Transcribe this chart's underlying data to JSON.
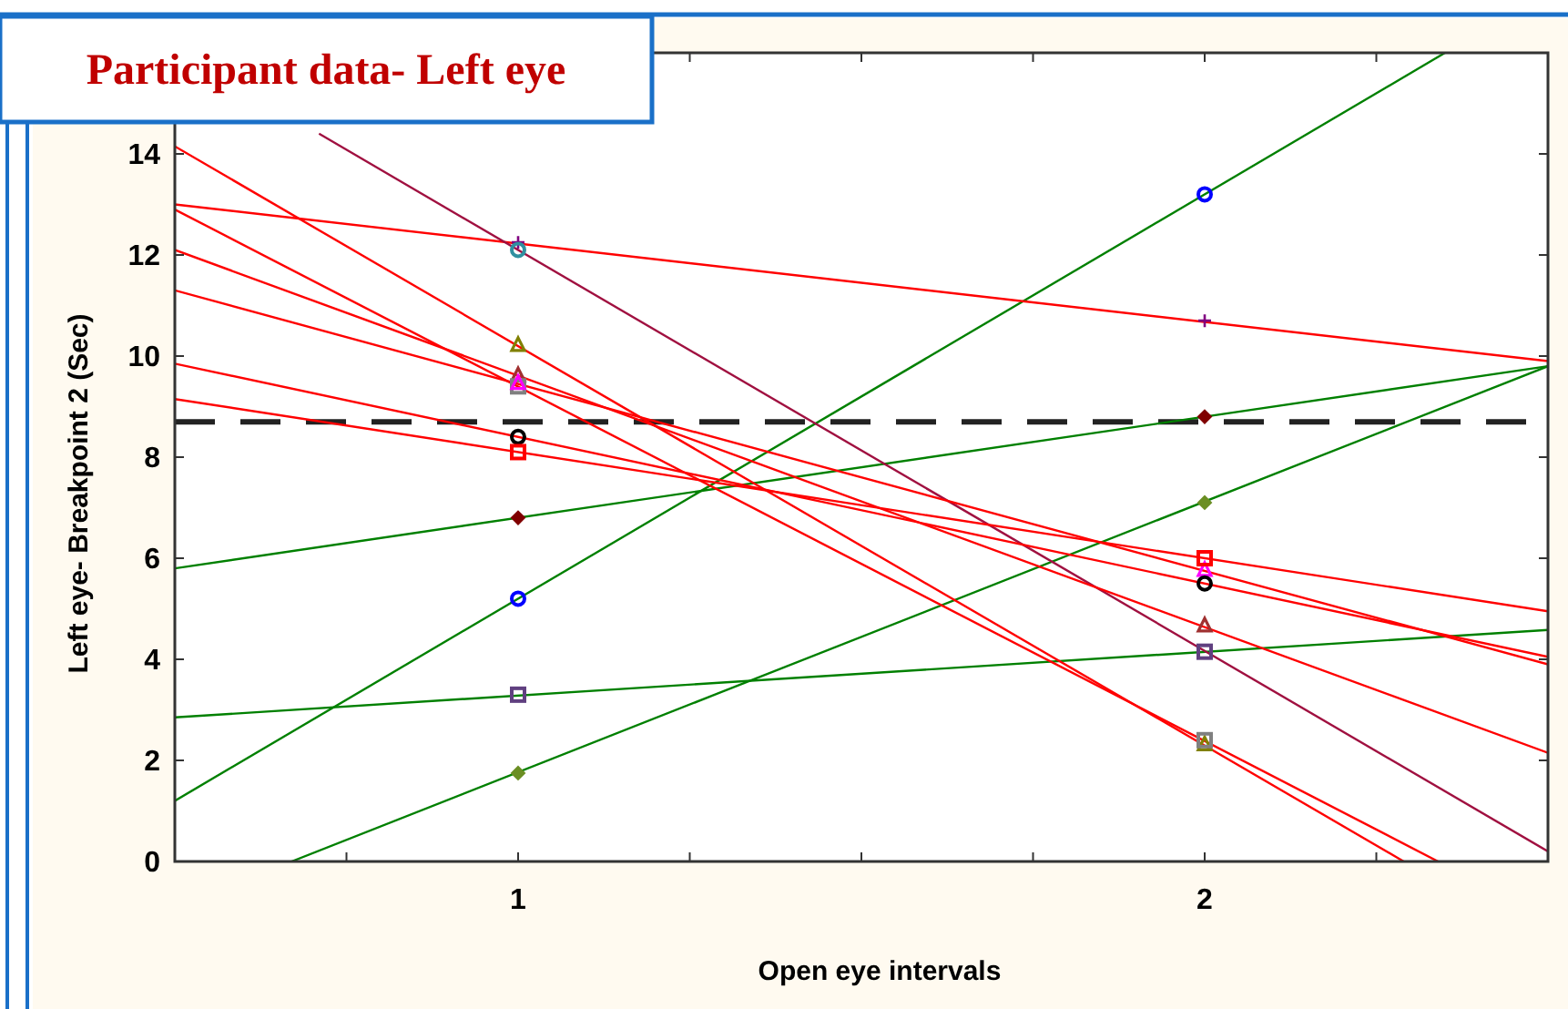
{
  "chart_data": {
    "type": "line",
    "title": "Participant data- Left eye",
    "xlabel": "Open eye intervals",
    "ylabel": "Left eye- Breakpoint 2 (Sec)",
    "xlim": [
      0.5,
      2.5
    ],
    "xticks": [
      {
        "value": 0.75,
        "label": null
      },
      1,
      {
        "value": 1.25,
        "label": null
      },
      {
        "value": 1.5,
        "label": null
      },
      {
        "value": 1.75,
        "label": null
      },
      2,
      {
        "value": 2.25,
        "label": null
      }
    ],
    "ylim": [
      0,
      16
    ],
    "yticks": [
      0,
      2,
      4,
      6,
      8,
      10,
      12,
      14
    ],
    "grid": false,
    "line_style": "solid",
    "ref_lines": [
      {
        "axis": "y",
        "value": 8.7,
        "color": "#222222",
        "line_style": "dashed"
      }
    ],
    "series": [
      {
        "type": "line",
        "color": "#008000",
        "x": [
          0.5,
          2.35
        ],
        "values": [
          1.2,
          16
        ]
      },
      {
        "type": "line",
        "color": "#008000",
        "x": [
          0.5,
          2.5
        ],
        "values": [
          5.8,
          9.8
        ]
      },
      {
        "type": "line",
        "color": "#008000",
        "x": [
          0.5,
          2.5
        ],
        "values": [
          2.85,
          4.58
        ]
      },
      {
        "type": "line",
        "color": "#008000",
        "x": [
          0.67,
          2.5
        ],
        "values": [
          0,
          9.8
        ]
      },
      {
        "type": "line",
        "color": "#ff0000",
        "x": [
          0.5,
          2.5
        ],
        "values": [
          13.0,
          9.9
        ]
      },
      {
        "type": "line",
        "color": "#a01040",
        "x": [
          0.71,
          2.5
        ],
        "values": [
          14.4,
          0.2
        ]
      },
      {
        "type": "line",
        "color": "#ff0000",
        "x": [
          0.5,
          2.29
        ],
        "values": [
          14.15,
          0
        ]
      },
      {
        "type": "line",
        "color": "#ff0000",
        "x": [
          0.5,
          2.5
        ],
        "values": [
          12.1,
          2.15
        ]
      },
      {
        "type": "line",
        "color": "#ff0000",
        "x": [
          0.5,
          2.34
        ],
        "values": [
          12.9,
          0
        ]
      },
      {
        "type": "line",
        "color": "#ff0000",
        "x": [
          0.5,
          2.5
        ],
        "values": [
          11.3,
          3.9
        ]
      },
      {
        "type": "line",
        "color": "#ff0000",
        "x": [
          0.5,
          2.5
        ],
        "values": [
          9.85,
          4.05
        ]
      },
      {
        "type": "line",
        "color": "#ff0000",
        "x": [
          0.5,
          2.5
        ],
        "values": [
          9.15,
          4.95
        ]
      },
      {
        "type": "scatter",
        "marker": "circle",
        "color": "#0000ff",
        "x": [
          1,
          2
        ],
        "values": [
          5.2,
          13.2
        ]
      },
      {
        "type": "scatter",
        "marker": "diamond",
        "color": "#800000",
        "x": [
          1,
          2
        ],
        "values": [
          6.8,
          8.8
        ]
      },
      {
        "type": "scatter",
        "marker": "square",
        "color": "#604080",
        "x": [
          1,
          2
        ],
        "values": [
          3.3,
          4.15
        ]
      },
      {
        "type": "scatter",
        "marker": "diamond",
        "color": "#6b8e23",
        "x": [
          1,
          2
        ],
        "values": [
          1.75,
          7.1
        ]
      },
      {
        "type": "scatter",
        "marker": "cross",
        "color": "#800080",
        "x": [
          1,
          2
        ],
        "values": [
          12.25,
          10.7
        ]
      },
      {
        "type": "scatter",
        "marker": "circle",
        "color": "#3090a0",
        "x": [
          1
        ],
        "values": [
          12.1
        ]
      },
      {
        "type": "scatter",
        "marker": "triangle",
        "color": "#808000",
        "x": [
          1,
          2
        ],
        "values": [
          10.2,
          2.3
        ]
      },
      {
        "type": "scatter",
        "marker": "triangle",
        "color": "#a03030",
        "x": [
          1,
          2
        ],
        "values": [
          9.6,
          4.65
        ]
      },
      {
        "type": "scatter",
        "marker": "square",
        "color": "#808080",
        "x": [
          1,
          2
        ],
        "values": [
          9.4,
          2.4
        ]
      },
      {
        "type": "scatter",
        "marker": "triangle",
        "color": "#ff00ff",
        "x": [
          1,
          2
        ],
        "values": [
          9.45,
          5.75
        ]
      },
      {
        "type": "scatter",
        "marker": "circle",
        "color": "#000000",
        "x": [
          1,
          2
        ],
        "values": [
          8.4,
          5.5
        ]
      },
      {
        "type": "scatter",
        "marker": "square",
        "color": "#ff0000",
        "x": [
          1,
          2
        ],
        "values": [
          8.1,
          6.0
        ]
      }
    ]
  }
}
